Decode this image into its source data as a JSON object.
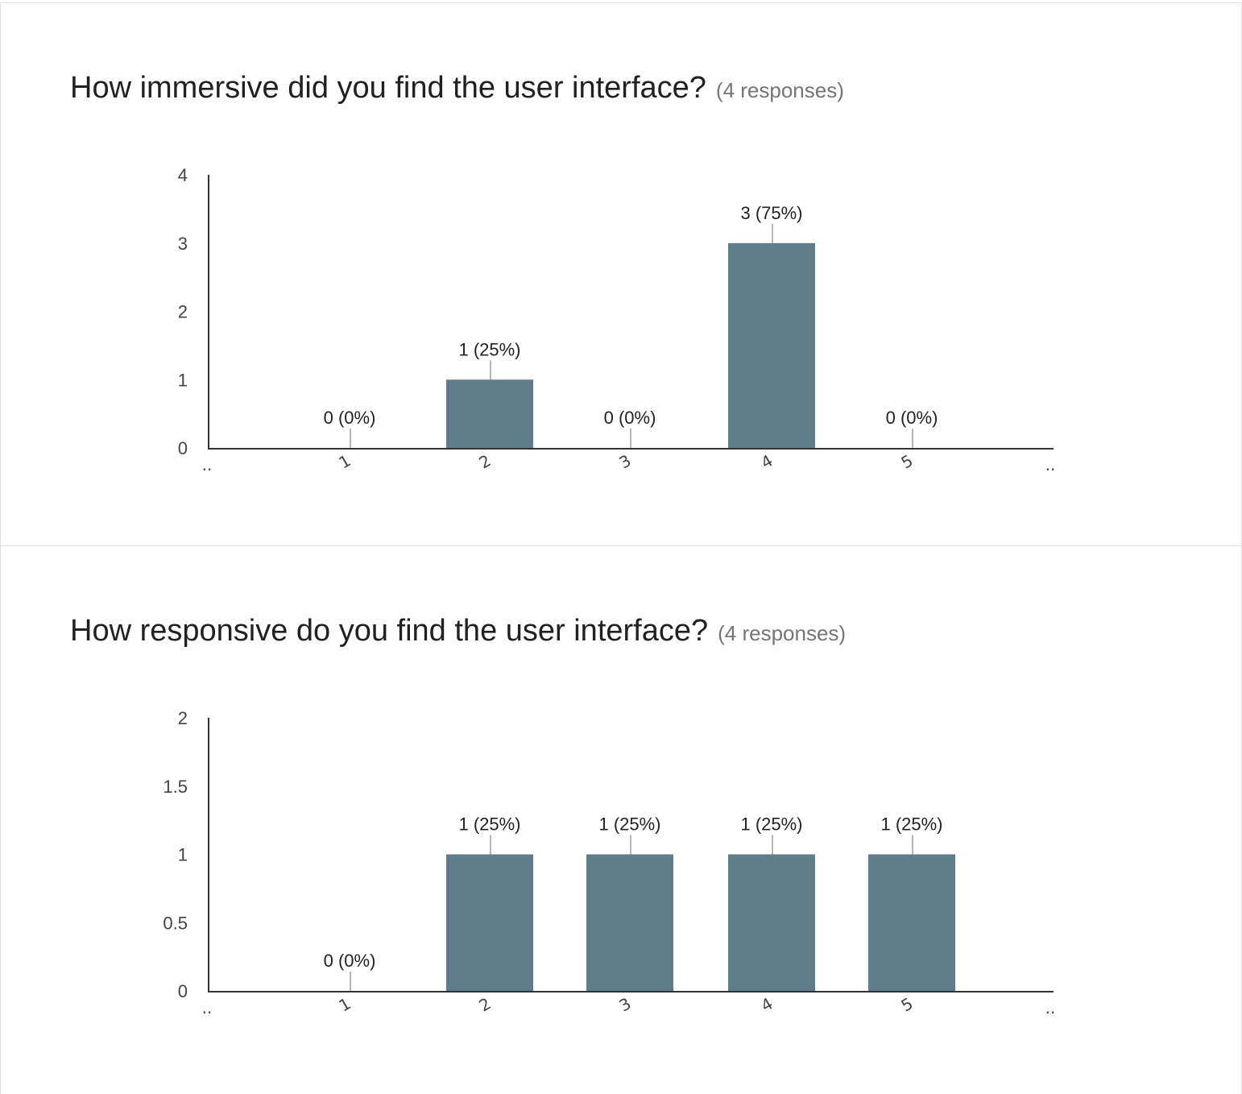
{
  "colors": {
    "bar": "#607d8b",
    "axis": "#333333",
    "leader": "#9e9e9e"
  },
  "chart_data": [
    {
      "type": "bar",
      "title": "How immersive did you find the user interface?",
      "subtitle": "(4 responses)",
      "categories": [
        "1",
        "2",
        "3",
        "4",
        "5"
      ],
      "edge_ticks": [
        "..",
        ".."
      ],
      "values": [
        0,
        1,
        0,
        3,
        0
      ],
      "data_labels": [
        "0 (0%)",
        "1 (25%)",
        "0 (0%)",
        "3 (75%)",
        "0 (0%)"
      ],
      "yticks": [
        "0",
        "1",
        "2",
        "3",
        "4"
      ],
      "ylim": [
        0,
        4
      ],
      "grid": false
    },
    {
      "type": "bar",
      "title": "How responsive do you find the user interface?",
      "subtitle": "(4 responses)",
      "categories": [
        "1",
        "2",
        "3",
        "4",
        "5"
      ],
      "edge_ticks": [
        "..",
        ".."
      ],
      "values": [
        0,
        1,
        1,
        1,
        1
      ],
      "data_labels": [
        "0 (0%)",
        "1 (25%)",
        "1 (25%)",
        "1 (25%)",
        "1 (25%)"
      ],
      "yticks": [
        "0",
        "0.5",
        "1",
        "1.5",
        "2"
      ],
      "ylim": [
        0,
        2
      ],
      "grid": false
    }
  ]
}
